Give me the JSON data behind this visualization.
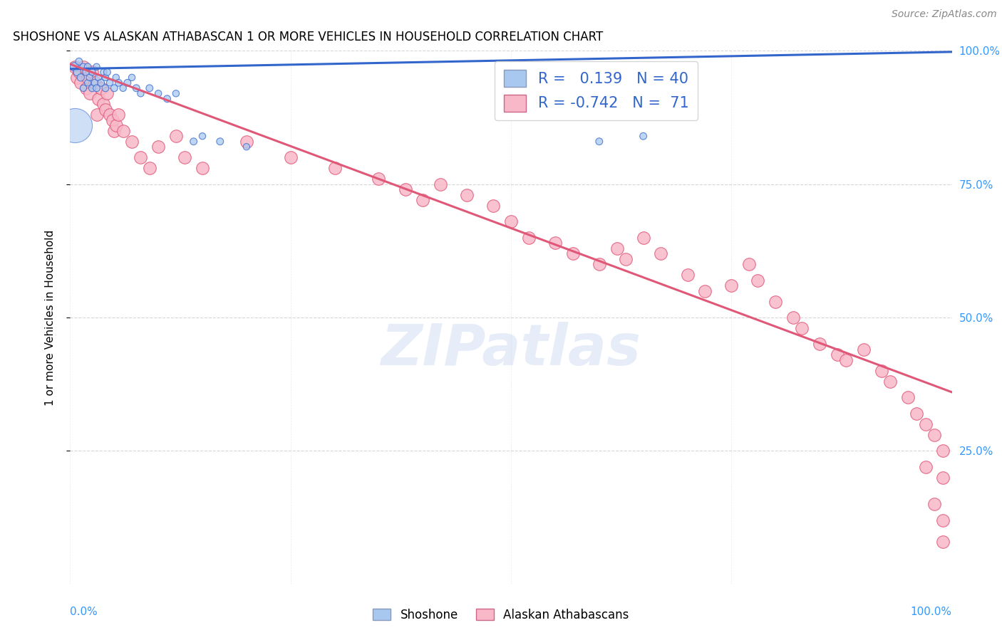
{
  "title": "SHOSHONE VS ALASKAN ATHABASCAN 1 OR MORE VEHICLES IN HOUSEHOLD CORRELATION CHART",
  "source": "Source: ZipAtlas.com",
  "ylabel": "1 or more Vehicles in Household",
  "legend_label_1": "Shoshone",
  "legend_label_2": "Alaskan Athabascans",
  "r1": 0.139,
  "n1": 40,
  "r2": -0.742,
  "n2": 71,
  "xlim": [
    0.0,
    1.0
  ],
  "ylim": [
    0.0,
    1.0
  ],
  "xticks": [
    0.0,
    1.0
  ],
  "xticklabels": [
    "0.0%",
    "100.0%"
  ],
  "yticks": [
    0.25,
    0.5,
    0.75,
    1.0
  ],
  "yticklabels": [
    "25.0%",
    "50.0%",
    "75.0%",
    "100.0%"
  ],
  "color_blue": "#A8C8F0",
  "color_pink": "#F8B8C8",
  "line_blue": "#3366CC",
  "line_pink": "#E05878",
  "blue_line_x": [
    0.0,
    1.0
  ],
  "blue_line_y": [
    0.966,
    0.998
  ],
  "pink_line_x": [
    0.0,
    1.0
  ],
  "pink_line_y": [
    0.975,
    0.36
  ],
  "shoshone_x": [
    0.005,
    0.008,
    0.01,
    0.012,
    0.015,
    0.015,
    0.018,
    0.02,
    0.02,
    0.022,
    0.025,
    0.025,
    0.028,
    0.03,
    0.03,
    0.032,
    0.035,
    0.038,
    0.04,
    0.04,
    0.042,
    0.045,
    0.05,
    0.052,
    0.055,
    0.06,
    0.065,
    0.07,
    0.075,
    0.08,
    0.09,
    0.1,
    0.11,
    0.12,
    0.14,
    0.15,
    0.17,
    0.2,
    0.6,
    0.65
  ],
  "shoshone_y": [
    0.97,
    0.96,
    0.98,
    0.95,
    0.97,
    0.93,
    0.96,
    0.94,
    0.97,
    0.95,
    0.93,
    0.96,
    0.94,
    0.97,
    0.93,
    0.95,
    0.94,
    0.96,
    0.93,
    0.95,
    0.96,
    0.94,
    0.93,
    0.95,
    0.94,
    0.93,
    0.94,
    0.95,
    0.93,
    0.92,
    0.93,
    0.92,
    0.91,
    0.92,
    0.83,
    0.84,
    0.83,
    0.82,
    0.83,
    0.84
  ],
  "shoshone_sizes": [
    80,
    60,
    50,
    55,
    50,
    45,
    50,
    45,
    50,
    45,
    50,
    45,
    50,
    45,
    50,
    45,
    50,
    45,
    50,
    45,
    50,
    45,
    50,
    45,
    50,
    45,
    50,
    45,
    50,
    45,
    50,
    45,
    50,
    45,
    50,
    45,
    50,
    45,
    50,
    50
  ],
  "shoshone_big_x": [
    0.005
  ],
  "shoshone_big_y": [
    0.86
  ],
  "alaskan_x": [
    0.005,
    0.008,
    0.01,
    0.012,
    0.015,
    0.018,
    0.02,
    0.022,
    0.025,
    0.028,
    0.03,
    0.032,
    0.035,
    0.038,
    0.04,
    0.042,
    0.045,
    0.048,
    0.05,
    0.052,
    0.055,
    0.06,
    0.07,
    0.08,
    0.09,
    0.1,
    0.12,
    0.13,
    0.15,
    0.2,
    0.25,
    0.3,
    0.35,
    0.38,
    0.4,
    0.42,
    0.45,
    0.48,
    0.5,
    0.52,
    0.55,
    0.57,
    0.6,
    0.62,
    0.63,
    0.65,
    0.67,
    0.7,
    0.72,
    0.75,
    0.77,
    0.78,
    0.8,
    0.82,
    0.83,
    0.85,
    0.87,
    0.88,
    0.9,
    0.92,
    0.93,
    0.95,
    0.96,
    0.97,
    0.97,
    0.98,
    0.98,
    0.99,
    0.99,
    0.99,
    0.99
  ],
  "alaskan_y": [
    0.97,
    0.95,
    0.96,
    0.94,
    0.97,
    0.93,
    0.95,
    0.92,
    0.96,
    0.94,
    0.88,
    0.91,
    0.93,
    0.9,
    0.89,
    0.92,
    0.88,
    0.87,
    0.85,
    0.86,
    0.88,
    0.85,
    0.83,
    0.8,
    0.78,
    0.82,
    0.84,
    0.8,
    0.78,
    0.83,
    0.8,
    0.78,
    0.76,
    0.74,
    0.72,
    0.75,
    0.73,
    0.71,
    0.68,
    0.65,
    0.64,
    0.62,
    0.6,
    0.63,
    0.61,
    0.65,
    0.62,
    0.58,
    0.55,
    0.56,
    0.6,
    0.57,
    0.53,
    0.5,
    0.48,
    0.45,
    0.43,
    0.42,
    0.44,
    0.4,
    0.38,
    0.35,
    0.32,
    0.3,
    0.22,
    0.28,
    0.15,
    0.25,
    0.2,
    0.12,
    0.08
  ]
}
